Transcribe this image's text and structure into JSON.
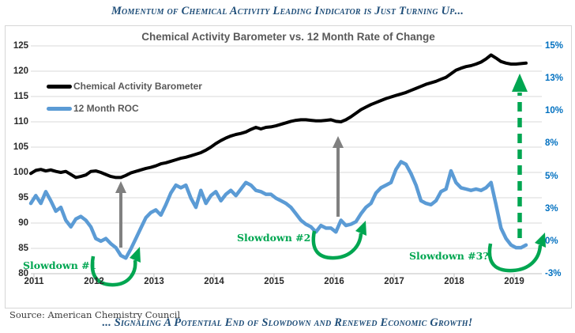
{
  "page": {
    "top_title": "Momentum of Chemical Activity Leading Indicator is Just Turning Up...",
    "bottom_title": "... Signaling A Potential End of Slowdown and Renewed Economic Growth!",
    "source": "Source: American Chemistry Council"
  },
  "colors": {
    "title_navy": "#1F4E79",
    "chart_title_gray": "#595959",
    "grid": "#D9D9D9",
    "axis_line": "#BFBFBF",
    "cab_black": "#000000",
    "roc_blue": "#5B9BD5",
    "right_axis_blue": "#0070C0",
    "annotation_green": "#00A651",
    "arrow_gray": "#808080"
  },
  "chart_data": {
    "type": "line",
    "title": "Chemical Activity Barometer vs. 12 Month Rate of Change",
    "x_axis": {
      "unit": "monthly",
      "start": "2011-01",
      "tick_labels": [
        "2011",
        "2012",
        "2013",
        "2014",
        "2015",
        "2016",
        "2017",
        "2018",
        "2019"
      ]
    },
    "left_axis": {
      "range": [
        80,
        125
      ],
      "ticks": [
        80,
        85,
        90,
        95,
        100,
        105,
        110,
        115,
        120,
        125
      ]
    },
    "right_axis": {
      "range": [
        -2.5,
        15
      ],
      "tick_values": [
        -2.5,
        0,
        2.5,
        5,
        7.5,
        10,
        12.5,
        15
      ],
      "tick_labels": [
        "-3%",
        "0%",
        "3%",
        "5%",
        "8%",
        "10%",
        "13%",
        "15%"
      ]
    },
    "legend": {
      "position": "top-left"
    },
    "series": [
      {
        "name": "Chemical Activity Barometer",
        "axis": "left",
        "color": "#000000",
        "values": [
          99.8,
          100.4,
          100.6,
          100.3,
          100.5,
          100.2,
          100.0,
          100.2,
          99.6,
          99.0,
          99.2,
          99.5,
          100.2,
          100.3,
          100.0,
          99.6,
          99.2,
          99.0,
          99.0,
          99.4,
          99.9,
          100.2,
          100.5,
          100.8,
          101.0,
          101.3,
          101.7,
          101.9,
          102.2,
          102.5,
          102.8,
          103.0,
          103.3,
          103.6,
          103.9,
          104.4,
          105.0,
          105.7,
          106.3,
          106.8,
          107.2,
          107.5,
          107.7,
          108.0,
          108.5,
          108.9,
          108.6,
          108.9,
          109.0,
          109.2,
          109.5,
          109.8,
          110.1,
          110.3,
          110.4,
          110.4,
          110.3,
          110.2,
          110.2,
          110.3,
          110.4,
          110.1,
          110.0,
          110.4,
          111.0,
          111.7,
          112.4,
          112.9,
          113.4,
          113.8,
          114.2,
          114.6,
          114.9,
          115.2,
          115.5,
          115.8,
          116.2,
          116.6,
          117.0,
          117.4,
          117.7,
          118.0,
          118.4,
          118.8,
          119.5,
          120.2,
          120.6,
          120.9,
          121.1,
          121.4,
          121.8,
          122.4,
          123.2,
          122.6,
          121.9,
          121.6,
          121.4,
          121.4,
          121.5,
          121.6
        ]
      },
      {
        "name": "12 Month ROC",
        "axis": "right",
        "color": "#5B9BD5",
        "values": [
          2.9,
          3.5,
          2.9,
          3.8,
          3.1,
          2.3,
          2.6,
          1.6,
          1.1,
          1.7,
          1.9,
          1.6,
          1.1,
          0.2,
          0.0,
          0.2,
          -0.2,
          -0.5,
          -1.1,
          -1.3,
          -0.6,
          0.2,
          1.0,
          1.8,
          2.2,
          2.4,
          2.0,
          2.8,
          3.7,
          4.3,
          4.1,
          4.3,
          3.3,
          2.6,
          3.9,
          2.9,
          3.5,
          3.8,
          3.1,
          3.6,
          3.9,
          3.5,
          4.0,
          4.5,
          4.3,
          3.9,
          3.8,
          3.6,
          3.6,
          3.3,
          3.1,
          2.9,
          2.6,
          2.1,
          1.6,
          1.3,
          1.1,
          0.7,
          1.2,
          1.0,
          1.0,
          0.7,
          1.6,
          1.2,
          1.3,
          1.5,
          2.1,
          2.6,
          2.9,
          3.7,
          4.1,
          4.3,
          4.5,
          5.5,
          6.1,
          5.9,
          5.2,
          4.3,
          3.1,
          2.9,
          2.8,
          3.1,
          3.8,
          4.0,
          5.4,
          4.5,
          4.1,
          4.0,
          3.9,
          4.0,
          3.9,
          4.1,
          4.5,
          2.8,
          1.0,
          0.2,
          -0.3,
          -0.5,
          -0.5,
          -0.3
        ]
      }
    ],
    "annotations": {
      "slowdown_1": "Slowdown #1",
      "slowdown_2": "Slowdown #2",
      "slowdown_3": "Slowdown #3?",
      "gray_up_arrows": [
        "mid-2012",
        "early-2016"
      ],
      "green_recovery_arcs": [
        "2012-2013",
        "2016",
        "2019"
      ],
      "green_dashed_up_arrow": "early-2019"
    }
  }
}
